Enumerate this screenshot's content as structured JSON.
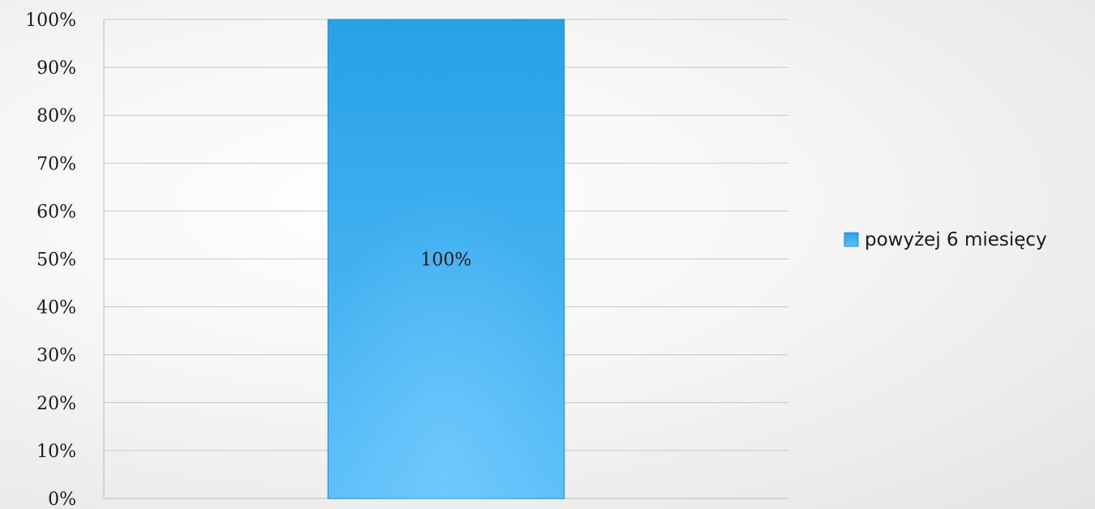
{
  "chart_data": {
    "type": "bar",
    "categories": [
      ""
    ],
    "series": [
      {
        "name": "powyżej 6 miesięcy",
        "values": [
          100
        ],
        "color": "#35a8ea",
        "data_labels": [
          "100%"
        ]
      }
    ],
    "y_ticks": [
      "0%",
      "10%",
      "20%",
      "30%",
      "40%",
      "50%",
      "60%",
      "70%",
      "80%",
      "90%",
      "100%"
    ],
    "ylim": [
      0,
      100
    ],
    "grid": true,
    "legend_position": "right",
    "colors": {
      "bar_top": "#27a1e7",
      "bar_bottom": "#5bbff9",
      "bar_edge": "#1f8fd6",
      "grid": "#c8c8c8",
      "axis": "#bdbdbd"
    }
  }
}
